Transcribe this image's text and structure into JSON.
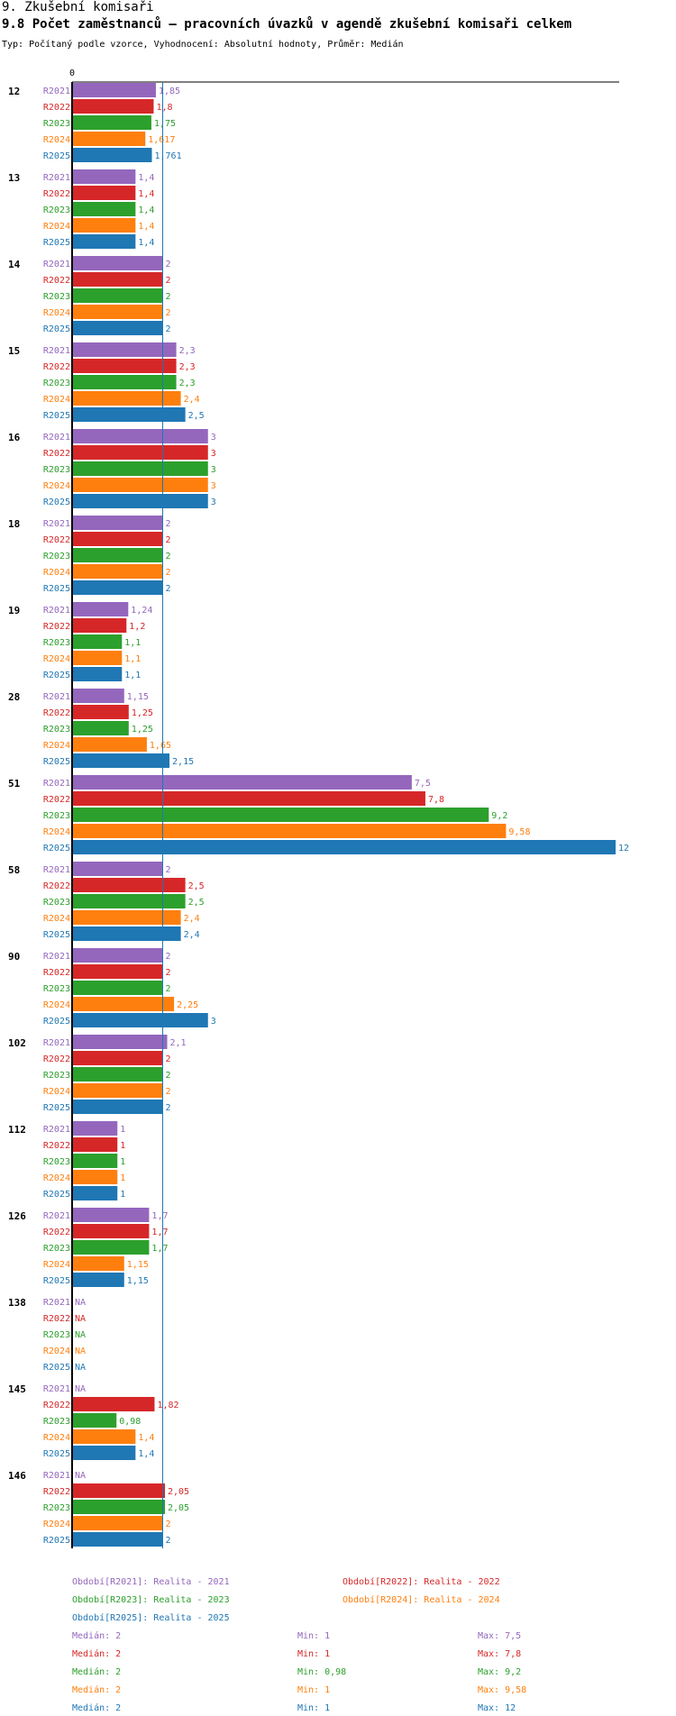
{
  "header": {
    "section": "9. Zkušební komisaři",
    "title": "9.8 Počet zaměstnanců – pracovních úvazků v agendě zkušební komisaři celkem",
    "subtitle": "Typ: Počítaný podle vzorce, Vyhodnocení: Absolutní hodnoty, Průměr: Medián"
  },
  "chart_data": {
    "type": "bar",
    "orientation": "horizontal",
    "title": "9.8 Počet zaměstnanců – pracovních úvazků v agendě zkušební komisaři celkem",
    "axis_zero_label": "0",
    "xlim": [
      0,
      12
    ],
    "median_line": 2,
    "na_label": "NA",
    "series": [
      {
        "key": "R2021",
        "color": "#9467bd"
      },
      {
        "key": "R2022",
        "color": "#d62728"
      },
      {
        "key": "R2023",
        "color": "#2ca02c"
      },
      {
        "key": "R2024",
        "color": "#ff7f0e"
      },
      {
        "key": "R2025",
        "color": "#1f77b4"
      }
    ],
    "groups": [
      {
        "label": "12",
        "values": [
          1.85,
          1.8,
          1.75,
          1.617,
          1.761
        ],
        "labels": [
          "1,85",
          "1,8",
          "1,75",
          "1,617",
          "1,761"
        ]
      },
      {
        "label": "13",
        "values": [
          1.4,
          1.4,
          1.4,
          1.4,
          1.4
        ],
        "labels": [
          "1,4",
          "1,4",
          "1,4",
          "1,4",
          "1,4"
        ]
      },
      {
        "label": "14",
        "values": [
          2,
          2,
          2,
          2,
          2
        ],
        "labels": [
          "2",
          "2",
          "2",
          "2",
          "2"
        ]
      },
      {
        "label": "15",
        "values": [
          2.3,
          2.3,
          2.3,
          2.4,
          2.5
        ],
        "labels": [
          "2,3",
          "2,3",
          "2,3",
          "2,4",
          "2,5"
        ]
      },
      {
        "label": "16",
        "values": [
          3,
          3,
          3,
          3,
          3
        ],
        "labels": [
          "3",
          "3",
          "3",
          "3",
          "3"
        ]
      },
      {
        "label": "18",
        "values": [
          2,
          2,
          2,
          2,
          2
        ],
        "labels": [
          "2",
          "2",
          "2",
          "2",
          "2"
        ]
      },
      {
        "label": "19",
        "values": [
          1.24,
          1.2,
          1.1,
          1.1,
          1.1
        ],
        "labels": [
          "1,24",
          "1,2",
          "1,1",
          "1,1",
          "1,1"
        ]
      },
      {
        "label": "28",
        "values": [
          1.15,
          1.25,
          1.25,
          1.65,
          2.15
        ],
        "labels": [
          "1,15",
          "1,25",
          "1,25",
          "1,65",
          "2,15"
        ]
      },
      {
        "label": "51",
        "values": [
          7.5,
          7.8,
          9.2,
          9.58,
          12
        ],
        "labels": [
          "7,5",
          "7,8",
          "9,2",
          "9,58",
          "12"
        ]
      },
      {
        "label": "58",
        "values": [
          2,
          2.5,
          2.5,
          2.4,
          2.4
        ],
        "labels": [
          "2",
          "2,5",
          "2,5",
          "2,4",
          "2,4"
        ]
      },
      {
        "label": "90",
        "values": [
          2,
          2,
          2,
          2.25,
          3
        ],
        "labels": [
          "2",
          "2",
          "2",
          "2,25",
          "3"
        ]
      },
      {
        "label": "102",
        "values": [
          2.1,
          2,
          2,
          2,
          2
        ],
        "labels": [
          "2,1",
          "2",
          "2",
          "2",
          "2"
        ]
      },
      {
        "label": "112",
        "values": [
          1,
          1,
          1,
          1,
          1
        ],
        "labels": [
          "1",
          "1",
          "1",
          "1",
          "1"
        ]
      },
      {
        "label": "126",
        "values": [
          1.7,
          1.7,
          1.7,
          1.15,
          1.15
        ],
        "labels": [
          "1,7",
          "1,7",
          "1,7",
          "1,15",
          "1,15"
        ]
      },
      {
        "label": "138",
        "values": [
          null,
          null,
          null,
          null,
          null
        ],
        "labels": [
          "NA",
          "NA",
          "NA",
          "NA",
          "NA"
        ]
      },
      {
        "label": "145",
        "values": [
          null,
          1.82,
          0.98,
          1.4,
          1.4
        ],
        "labels": [
          "NA",
          "1,82",
          "0,98",
          "1,4",
          "1,4"
        ]
      },
      {
        "label": "146",
        "values": [
          null,
          2.05,
          2.05,
          2,
          2
        ],
        "labels": [
          "NA",
          "2,05",
          "2,05",
          "2",
          "2"
        ]
      }
    ],
    "legend": [
      "Období[R2021]: Realita - 2021",
      "Období[R2022]: Realita - 2022",
      "Období[R2023]: Realita - 2023",
      "Období[R2024]: Realita - 2024",
      "Období[R2025]: Realita - 2025"
    ],
    "stats": [
      {
        "median": "Medián: 2",
        "min": "Min: 1",
        "max": "Max: 7,5"
      },
      {
        "median": "Medián: 2",
        "min": "Min: 1",
        "max": "Max: 7,8"
      },
      {
        "median": "Medián: 2",
        "min": "Min: 0,98",
        "max": "Max: 9,2"
      },
      {
        "median": "Medián: 2",
        "min": "Min: 1",
        "max": "Max: 9,58"
      },
      {
        "median": "Medián: 2",
        "min": "Min: 1",
        "max": "Max: 12"
      }
    ]
  }
}
